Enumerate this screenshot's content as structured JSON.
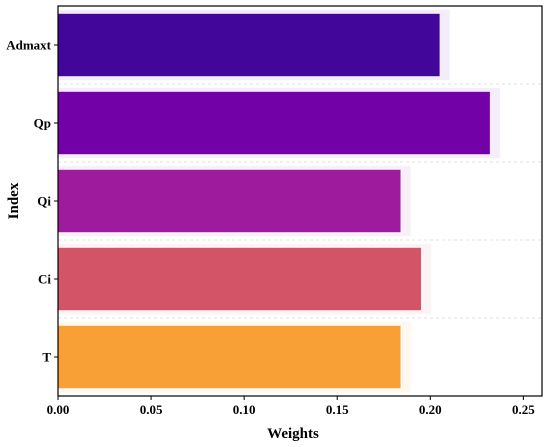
{
  "chart_data": {
    "type": "bar",
    "orientation": "horizontal",
    "categories": [
      "Admaxt",
      "Qp",
      "Qi",
      "Ci",
      "T"
    ],
    "values": [
      0.205,
      0.232,
      0.184,
      0.195,
      0.184
    ],
    "colors": [
      "#42069b",
      "#7201a8",
      "#9f1b9e",
      "#d35467",
      "#f8a036"
    ],
    "xlabel": "Weights",
    "ylabel": "Index",
    "xlim": [
      0,
      0.26
    ],
    "xticks": [
      "0.00",
      "0.05",
      "0.10",
      "0.15",
      "0.20",
      "0.25"
    ],
    "grid": "horizontal dashed, faint"
  }
}
